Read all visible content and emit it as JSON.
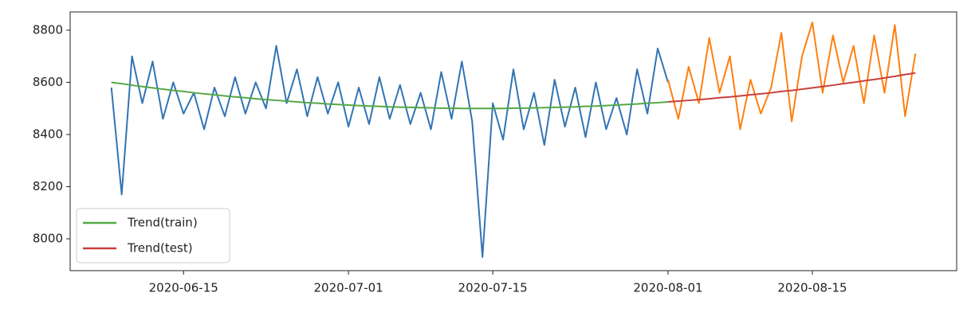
{
  "chart_data": {
    "type": "line",
    "x": [
      "2020-06-08",
      "2020-06-09",
      "2020-06-10",
      "2020-06-11",
      "2020-06-12",
      "2020-06-13",
      "2020-06-14",
      "2020-06-15",
      "2020-06-16",
      "2020-06-17",
      "2020-06-18",
      "2020-06-19",
      "2020-06-20",
      "2020-06-21",
      "2020-06-22",
      "2020-06-23",
      "2020-06-24",
      "2020-06-25",
      "2020-06-26",
      "2020-06-27",
      "2020-06-28",
      "2020-06-29",
      "2020-06-30",
      "2020-07-01",
      "2020-07-02",
      "2020-07-03",
      "2020-07-04",
      "2020-07-05",
      "2020-07-06",
      "2020-07-07",
      "2020-07-08",
      "2020-07-09",
      "2020-07-10",
      "2020-07-11",
      "2020-07-12",
      "2020-07-13",
      "2020-07-14",
      "2020-07-15",
      "2020-07-16",
      "2020-07-17",
      "2020-07-18",
      "2020-07-19",
      "2020-07-20",
      "2020-07-21",
      "2020-07-22",
      "2020-07-23",
      "2020-07-24",
      "2020-07-25",
      "2020-07-26",
      "2020-07-27",
      "2020-07-28",
      "2020-07-29",
      "2020-07-30",
      "2020-07-31",
      "2020-08-01",
      "2020-08-02",
      "2020-08-03",
      "2020-08-04",
      "2020-08-05",
      "2020-08-06",
      "2020-08-07",
      "2020-08-08",
      "2020-08-09",
      "2020-08-10",
      "2020-08-11",
      "2020-08-12",
      "2020-08-13",
      "2020-08-14",
      "2020-08-15",
      "2020-08-16",
      "2020-08-17",
      "2020-08-18",
      "2020-08-19",
      "2020-08-20",
      "2020-08-21",
      "2020-08-22",
      "2020-08-23",
      "2020-08-24",
      "2020-08-25"
    ],
    "series": [
      {
        "color": "#3274b4",
        "values": [
          8580,
          8170,
          8700,
          8520,
          8680,
          8460,
          8600,
          8480,
          8560,
          8420,
          8580,
          8470,
          8620,
          8480,
          8600,
          8500,
          8740,
          8520,
          8650,
          8470,
          8620,
          8480,
          8600,
          8430,
          8580,
          8440,
          8620,
          8460,
          8590,
          8440,
          8560,
          8420,
          8640,
          8460,
          8680,
          8450,
          7930,
          8520,
          8380,
          8650,
          8420,
          8560,
          8360,
          8610,
          8430,
          8580,
          8390,
          8600,
          8420,
          8540,
          8400,
          8650,
          8480,
          8730,
          8600,
          null,
          null,
          null,
          null,
          null,
          null,
          null,
          null,
          null,
          null,
          null,
          null,
          null,
          null,
          null,
          null,
          null,
          null,
          null,
          null,
          null,
          null,
          null,
          null
        ]
      },
      {
        "color": "#ff7f0e",
        "values": [
          null,
          null,
          null,
          null,
          null,
          null,
          null,
          null,
          null,
          null,
          null,
          null,
          null,
          null,
          null,
          null,
          null,
          null,
          null,
          null,
          null,
          null,
          null,
          null,
          null,
          null,
          null,
          null,
          null,
          null,
          null,
          null,
          null,
          null,
          null,
          null,
          null,
          null,
          null,
          null,
          null,
          null,
          null,
          null,
          null,
          null,
          null,
          null,
          null,
          null,
          null,
          null,
          null,
          null,
          8610,
          8460,
          8660,
          8520,
          8770,
          8560,
          8700,
          8420,
          8610,
          8480,
          8580,
          8790,
          8450,
          8700,
          8830,
          8560,
          8780,
          8600,
          8740,
          8520,
          8780,
          8560,
          8820,
          8470,
          8710
        ]
      },
      {
        "name": "Trend(train)",
        "color": "#55a846",
        "values": [
          8600,
          8595,
          8589,
          8584,
          8579,
          8574,
          8569,
          8565,
          8560,
          8556,
          8552,
          8548,
          8544,
          8541,
          8537,
          8534,
          8531,
          8528,
          8525,
          8522,
          8520,
          8517,
          8515,
          8513,
          8511,
          8509,
          8508,
          8506,
          8505,
          8504,
          8503,
          8502,
          8501,
          8501,
          8500,
          8500,
          8500,
          8500,
          8500,
          8501,
          8501,
          8502,
          8503,
          8504,
          8505,
          8506,
          8508,
          8509,
          8511,
          8513,
          8515,
          8517,
          8520,
          8522,
          8525,
          null,
          null,
          null,
          null,
          null,
          null,
          null,
          null,
          null,
          null,
          null,
          null,
          null,
          null,
          null,
          null,
          null,
          null,
          null,
          null,
          null,
          null,
          null,
          null
        ]
      },
      {
        "name": "Trend(test)",
        "color": "#c8403c",
        "values": [
          null,
          null,
          null,
          null,
          null,
          null,
          null,
          null,
          null,
          null,
          null,
          null,
          null,
          null,
          null,
          null,
          null,
          null,
          null,
          null,
          null,
          null,
          null,
          null,
          null,
          null,
          null,
          null,
          null,
          null,
          null,
          null,
          null,
          null,
          null,
          null,
          null,
          null,
          null,
          null,
          null,
          null,
          null,
          null,
          null,
          null,
          null,
          null,
          null,
          null,
          null,
          null,
          null,
          null,
          8525,
          8528,
          8531,
          8534,
          8537,
          8541,
          8544,
          8548,
          8552,
          8556,
          8560,
          8565,
          8569,
          8574,
          8579,
          8584,
          8589,
          8595,
          8600,
          8606,
          8611,
          8617,
          8623,
          8630,
          8636
        ]
      }
    ],
    "xlim": [
      "2020-06-04",
      "2020-08-29"
    ],
    "xticks": [
      "2020-06-15",
      "2020-07-01",
      "2020-07-15",
      "2020-08-01",
      "2020-08-15"
    ],
    "ylim": [
      7878,
      8870
    ],
    "yticks": [
      8000,
      8200,
      8400,
      8600,
      8800
    ],
    "grid": false,
    "legend": "lower left"
  }
}
